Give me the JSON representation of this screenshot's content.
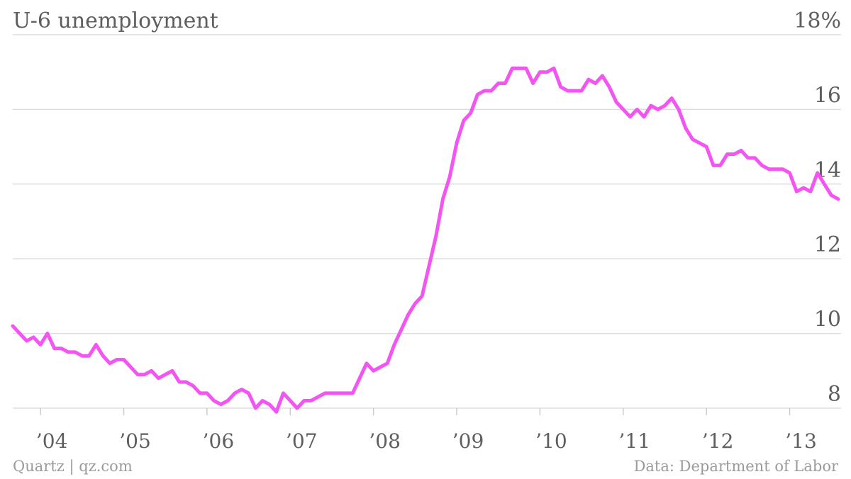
{
  "title": "U-6 unemployment",
  "footer": {
    "source_left": "Quartz | qz.com",
    "source_right": "Data: Department of Labor"
  },
  "colors": {
    "line": "#f255f2",
    "grid": "#dddddd",
    "text": "#5e5e5e"
  },
  "chart_data": {
    "type": "line",
    "title": "U-6 unemployment",
    "series": [
      {
        "x_start": "2003-09",
        "frequency": "monthly",
        "values": [
          10.2,
          10.0,
          9.8,
          9.9,
          9.7,
          10.0,
          9.6,
          9.6,
          9.5,
          9.5,
          9.4,
          9.4,
          9.7,
          9.4,
          9.2,
          9.3,
          9.3,
          9.1,
          8.9,
          8.9,
          9.0,
          8.8,
          8.9,
          9.0,
          8.7,
          8.7,
          8.6,
          8.4,
          8.4,
          8.2,
          8.1,
          8.2,
          8.4,
          8.5,
          8.4,
          8.0,
          8.2,
          8.1,
          7.9,
          8.4,
          8.2,
          8.0,
          8.2,
          8.2,
          8.3,
          8.4,
          8.4,
          8.4,
          8.4,
          8.4,
          8.8,
          9.2,
          9.0,
          9.1,
          9.2,
          9.7,
          10.1,
          10.5,
          10.8,
          11.0,
          11.8,
          12.6,
          13.6,
          14.2,
          15.1,
          15.7,
          15.9,
          16.4,
          16.5,
          16.5,
          16.7,
          16.7,
          17.1,
          17.1,
          17.1,
          16.7,
          17.0,
          17.0,
          17.1,
          16.6,
          16.5,
          16.5,
          16.5,
          16.8,
          16.7,
          16.9,
          16.6,
          16.2,
          16.0,
          15.8,
          16.0,
          15.8,
          16.1,
          16.0,
          16.1,
          16.3,
          16.0,
          15.5,
          15.2,
          15.1,
          15.0,
          14.5,
          14.5,
          14.8,
          14.8,
          14.9,
          14.7,
          14.7,
          14.5,
          14.4,
          14.4,
          14.4,
          14.3,
          13.8,
          13.9,
          13.8,
          14.3,
          14.0,
          13.7,
          13.6
        ]
      }
    ],
    "y_ticks": [
      "8",
      "10",
      "12",
      "14",
      "16",
      "18%"
    ],
    "y_tick_values": [
      8,
      10,
      12,
      14,
      16,
      18
    ],
    "x_ticks": [
      {
        "label": "’04",
        "date": "2004-01"
      },
      {
        "label": "’05",
        "date": "2005-01"
      },
      {
        "label": "’06",
        "date": "2006-01"
      },
      {
        "label": "’07",
        "date": "2007-01"
      },
      {
        "label": "’08",
        "date": "2008-01"
      },
      {
        "label": "’09",
        "date": "2009-01"
      },
      {
        "label": "’10",
        "date": "2010-01"
      },
      {
        "label": "’11",
        "date": "2011-01"
      },
      {
        "label": "’12",
        "date": "2012-01"
      },
      {
        "label": "’13",
        "date": "2013-01"
      }
    ],
    "ylim": [
      8,
      18
    ],
    "grid": true
  }
}
